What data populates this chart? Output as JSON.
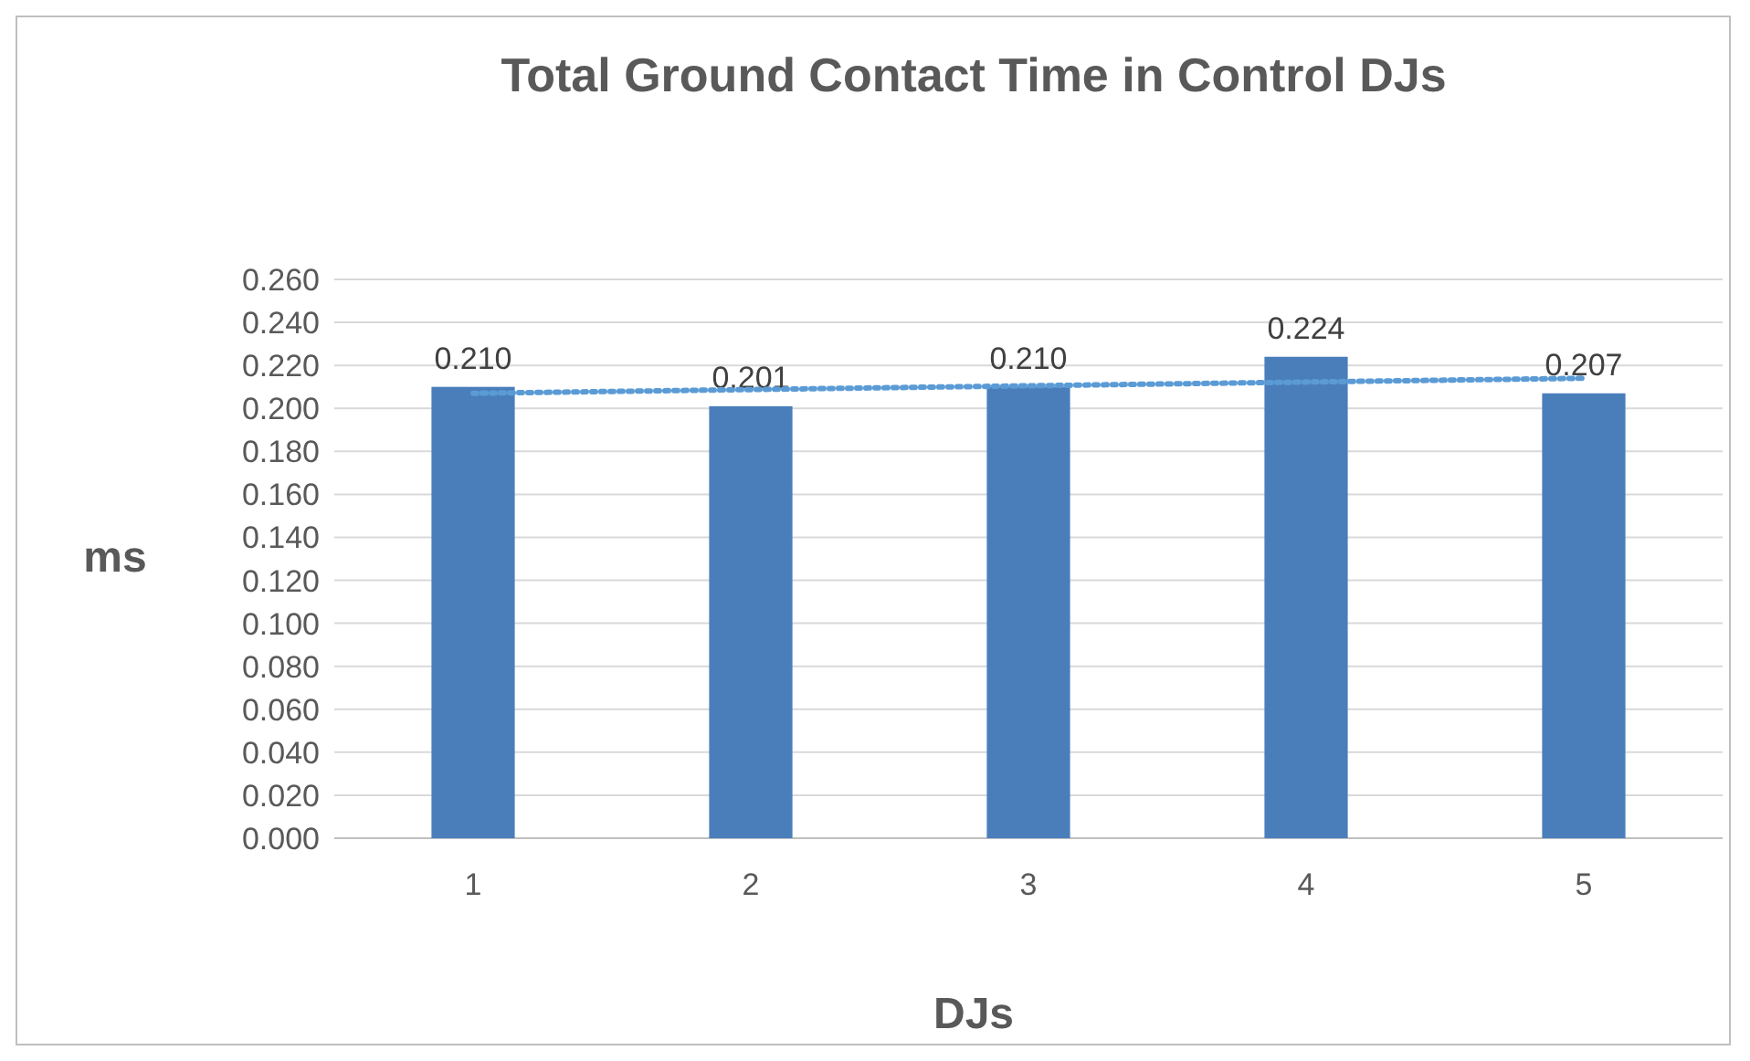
{
  "chart_data": {
    "type": "bar",
    "title": "Total Ground Contact Time in Control DJs",
    "xlabel": "DJs",
    "ylabel": "ms",
    "x": [
      1,
      2,
      3,
      4,
      5
    ],
    "xlim": [
      0.5,
      5.5
    ],
    "xticks": [
      1,
      2,
      3,
      4,
      5
    ],
    "ylim": [
      0,
      0.26
    ],
    "yticks": [
      {
        "value": 0,
        "label": "0.000"
      },
      {
        "value": 0.02,
        "label": "0.020"
      },
      {
        "value": 0.04,
        "label": "0.040"
      },
      {
        "value": 0.06,
        "label": "0.060"
      },
      {
        "value": 0.08,
        "label": "0.080"
      },
      {
        "value": 0.1,
        "label": "0.100"
      },
      {
        "value": 0.12,
        "label": "0.120"
      },
      {
        "value": 0.14,
        "label": "0.140"
      },
      {
        "value": 0.16,
        "label": "0.160"
      },
      {
        "value": 0.18,
        "label": "0.180"
      },
      {
        "value": 0.2,
        "label": "0.200"
      },
      {
        "value": 0.22,
        "label": "0.220"
      },
      {
        "value": 0.24,
        "label": "0.240"
      },
      {
        "value": 0.26,
        "label": "0.260"
      }
    ],
    "grid": "y",
    "series": [
      {
        "color": "#4a7ebb",
        "values": [
          0.21,
          0.201,
          0.21,
          0.224,
          0.207
        ],
        "value_labels": [
          "0.210",
          "0.201",
          "0.210",
          "0.224",
          "0.207"
        ]
      },
      {
        "type": "line",
        "color": "#5b9bd5",
        "line_style": "dotted",
        "x": [
          1,
          5
        ],
        "values": [
          0.207,
          0.214
        ]
      }
    ]
  }
}
